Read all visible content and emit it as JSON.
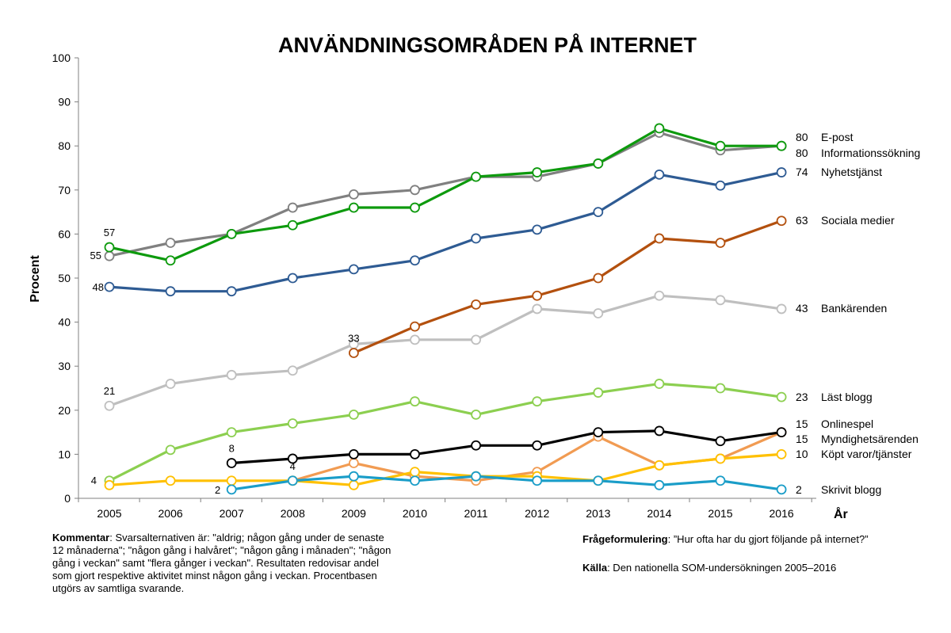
{
  "chart_data": {
    "type": "line",
    "title": "ANVÄNDNINGSOMRÅDEN PÅ INTERNET",
    "ylabel": "Procent",
    "xlabel": "År",
    "ylim": [
      0,
      100
    ],
    "yticks": [
      "0",
      "10",
      "20",
      "30",
      "40",
      "50",
      "60",
      "70",
      "80",
      "90",
      "100"
    ],
    "categories": [
      "2005",
      "2006",
      "2007",
      "2008",
      "2009",
      "2010",
      "2011",
      "2012",
      "2013",
      "2014",
      "2015",
      "2016"
    ],
    "series": [
      {
        "key": "bank",
        "name": "Bankärenden",
        "color": "#bfbfbf",
        "values": [
          21,
          26,
          28,
          29,
          35,
          36,
          36,
          43,
          42,
          46,
          45,
          43
        ],
        "end_value": "43",
        "start_label": {
          "text": "21",
          "index": 0
        }
      },
      {
        "key": "info",
        "name": "Informationssökning",
        "color": "#808080",
        "values": [
          55,
          58,
          60,
          66,
          69,
          70,
          73,
          73,
          76,
          83,
          79,
          80
        ],
        "end_value": "80",
        "start_label": {
          "text": "55",
          "index": 0
        }
      },
      {
        "key": "epost",
        "name": "E-post",
        "color": "#0d9a0d",
        "values": [
          57,
          54,
          60,
          62,
          66,
          66,
          73,
          74,
          76,
          84,
          80,
          80
        ],
        "end_value": "80",
        "start_label": {
          "text": "57",
          "index": 0
        }
      },
      {
        "key": "nyhet",
        "name": "Nyhetstjänst",
        "color": "#2e5b93",
        "values": [
          48,
          47,
          47,
          50,
          52,
          54,
          59,
          61,
          65,
          73.5,
          71,
          74
        ],
        "end_value": "74",
        "start_label": {
          "text": "48",
          "index": 0
        }
      },
      {
        "key": "sociala",
        "name": "Sociala medier",
        "color": "#b3500e",
        "values": [
          null,
          null,
          null,
          null,
          33,
          39,
          44,
          46,
          50,
          59,
          58,
          63
        ],
        "end_value": "63",
        "start_label": {
          "text": "33",
          "index": 4
        }
      },
      {
        "key": "blogg",
        "name": "Läst blogg",
        "color": "#8ccf50",
        "values": [
          4,
          11,
          15,
          17,
          19,
          22,
          19,
          22,
          24,
          26,
          25,
          23
        ],
        "end_value": "23",
        "start_label": {
          "text": "4",
          "index": 0
        }
      },
      {
        "key": "myndighet",
        "name": "Myndighetsärenden",
        "color": "#f19b52",
        "values": [
          null,
          null,
          null,
          4,
          8,
          5,
          4,
          6,
          14,
          7.5,
          9,
          15
        ],
        "end_value": "15",
        "start_label": {
          "text": "4",
          "index": 3
        }
      },
      {
        "key": "kopt",
        "name": "Köpt varor/tjänster",
        "color": "#ffc000",
        "values": [
          3,
          4,
          4,
          4,
          3,
          6,
          5,
          5,
          4,
          7.5,
          9,
          10
        ],
        "end_value": "10",
        "start_label": null
      },
      {
        "key": "skrivit",
        "name": "Skrivit blogg",
        "color": "#1a9dc8",
        "values": [
          null,
          null,
          2,
          4,
          5,
          4,
          5,
          4,
          4,
          3,
          4,
          2
        ],
        "end_value": "2",
        "start_label": {
          "text": "2",
          "index": 2
        }
      },
      {
        "key": "spel",
        "name": "Onlinespel",
        "color": "#000000",
        "values": [
          null,
          null,
          8,
          9,
          10,
          10,
          12,
          12,
          15,
          15.3,
          13,
          15
        ],
        "end_value": "15",
        "start_label": {
          "text": "8",
          "index": 2
        }
      }
    ],
    "end_label_order": [
      "epost",
      "info",
      "nyhet",
      "sociala",
      "bank",
      "blogg",
      "spel",
      "myndighet",
      "kopt",
      "skrivit"
    ]
  },
  "footer": {
    "comment_label": "Kommentar",
    "comment_text": ": Svarsalternativen är: \"aldrig; någon gång under de senaste 12 månaderna\"; \"någon gång i halvåret\"; \"någon gång i månaden\"; \"någon gång i veckan\" samt \"flera gånger i veckan\". Resultaten redovisar andel som gjort respektive aktivitet minst någon gång i veckan. Procentbasen utgörs av samtliga svarande.",
    "question_label": "Frågeformulering",
    "question_text": ": ”Hur ofta har du gjort följande på internet?”",
    "source_label": "Källa",
    "source_text": ": Den nationella SOM-undersökningen 2005–2016"
  }
}
